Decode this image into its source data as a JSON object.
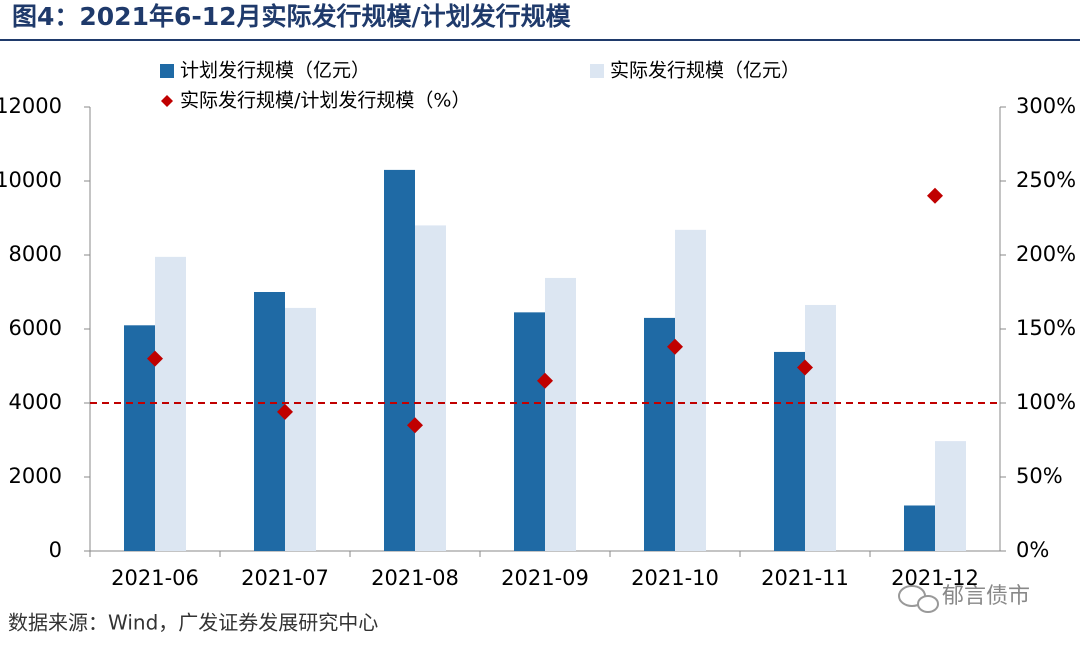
{
  "chart_data": {
    "type": "bar",
    "title": "图4：2021年6-12月实际发行规模/计划发行规模",
    "categories": [
      "2021-06",
      "2021-07",
      "2021-08",
      "2021-09",
      "2021-10",
      "2021-11",
      "2021-12"
    ],
    "series": [
      {
        "name": "计划发行规模（亿元）",
        "color": "#1f6aa5",
        "values": [
          6100,
          7000,
          10300,
          6450,
          6300,
          5380,
          1230
        ]
      },
      {
        "name": "实际发行规模（亿元）",
        "color": "#dce6f2",
        "values": [
          7950,
          6570,
          8800,
          7380,
          8680,
          6650,
          2970
        ]
      },
      {
        "name": "实际发行规模/计划发行规模（%）",
        "color": "#c00000",
        "type": "scatter",
        "axis": "y2",
        "values": [
          130,
          94,
          85,
          115,
          138,
          124,
          240
        ]
      }
    ],
    "reference_line": {
      "value": 100,
      "axis": "y2",
      "color": "#c00000"
    },
    "ylim": [
      0,
      12000
    ],
    "yticks": [
      0,
      2000,
      4000,
      6000,
      8000,
      10000,
      12000
    ],
    "y2lim": [
      0,
      300
    ],
    "y2ticks": [
      {
        "value": 0,
        "label": "0%"
      },
      {
        "value": 50,
        "label": "50%"
      },
      {
        "value": 100,
        "label": "100%"
      },
      {
        "value": 150,
        "label": "150%"
      },
      {
        "value": 200,
        "label": "200%"
      },
      {
        "value": 250,
        "label": "250%"
      },
      {
        "value": 300,
        "label": "300%"
      }
    ],
    "source": "数据来源：Wind，广发证券发展研究中心",
    "watermark": "郁言债市"
  }
}
